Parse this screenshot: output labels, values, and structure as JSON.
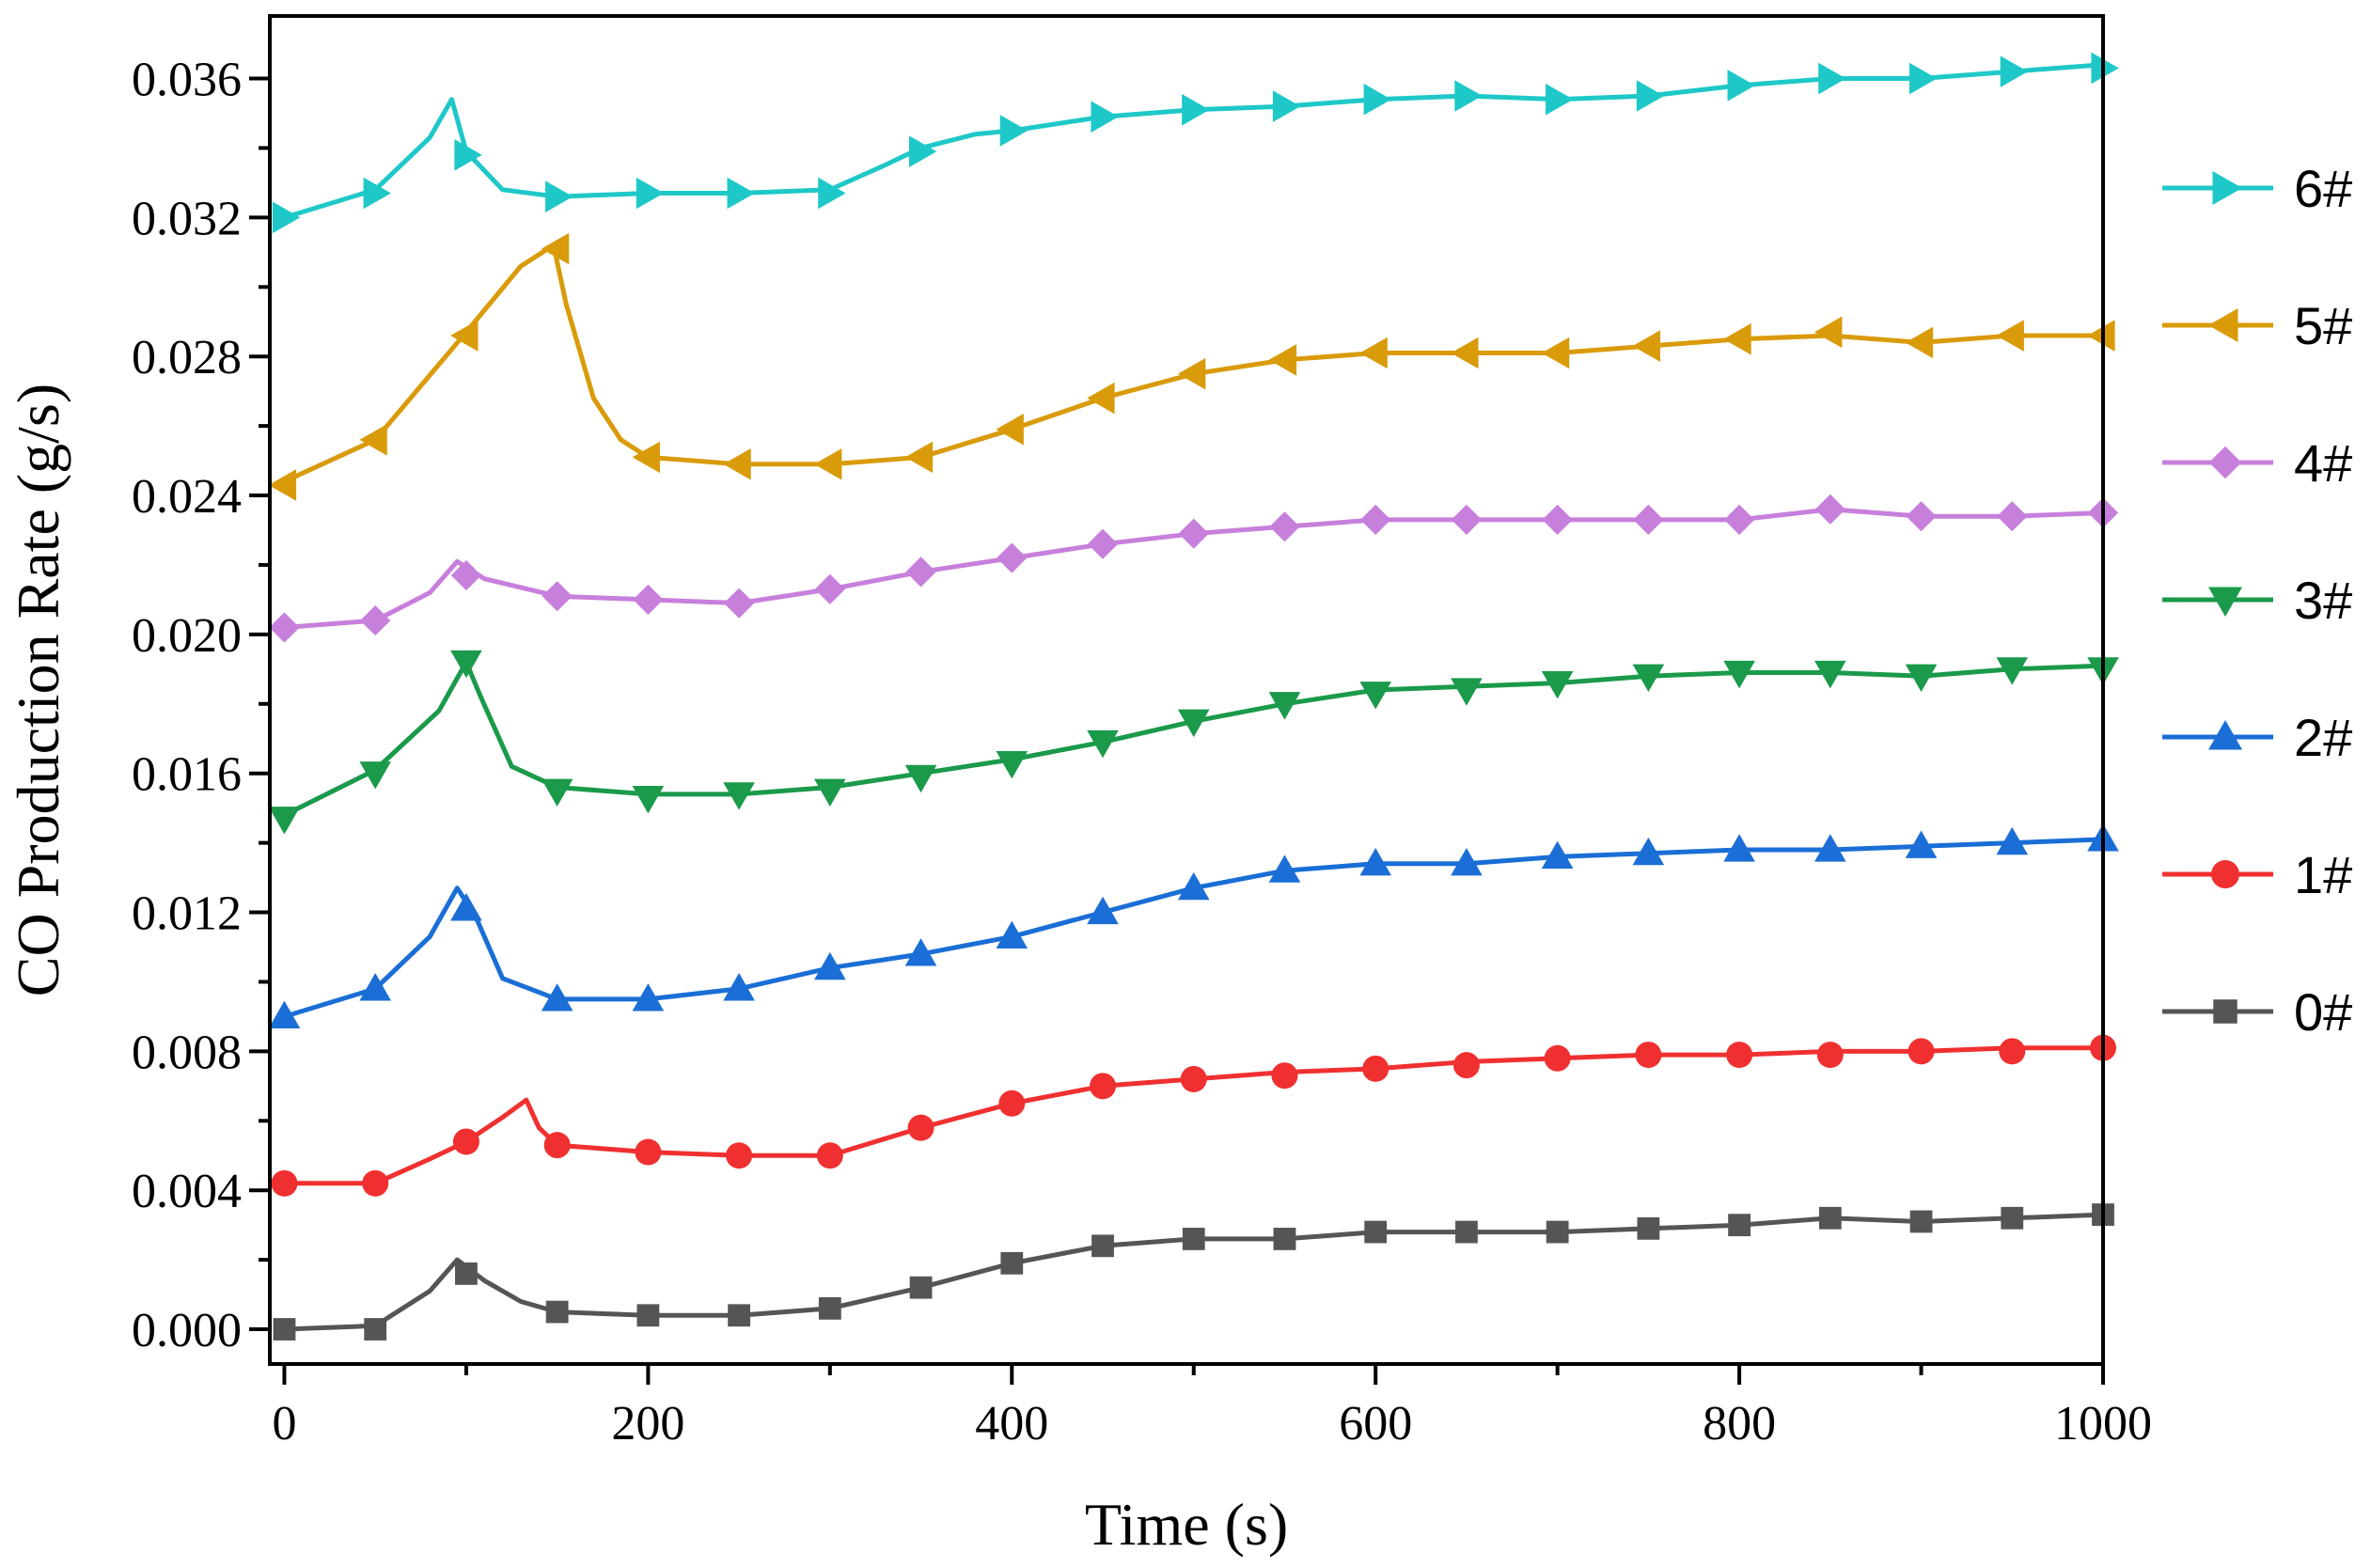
{
  "chart_data": {
    "type": "line",
    "title": "",
    "xlabel": "Time (s)",
    "ylabel": "CO Production Rate (g/s)",
    "xlim": [
      -8,
      1000
    ],
    "ylim": [
      -0.001,
      0.0378
    ],
    "x_ticks": [
      0,
      200,
      400,
      600,
      800,
      1000
    ],
    "x_tick_labels": [
      "0",
      "200",
      "400",
      "600",
      "800",
      "1000"
    ],
    "y_ticks": [
      0.0,
      0.004,
      0.008,
      0.012,
      0.016,
      0.02,
      0.024,
      0.028,
      0.032,
      0.036
    ],
    "y_tick_labels": [
      "0.000",
      "0.004",
      "0.008",
      "0.012",
      "0.016",
      "0.020",
      "0.024",
      "0.028",
      "0.032",
      "0.036"
    ],
    "grid": false,
    "legend_position": "right",
    "series": [
      {
        "name": "6#",
        "color": "#1fc8c8",
        "marker": "triangle-right",
        "line_x": [
          0,
          50,
          80,
          92,
          100,
          120,
          150,
          200,
          250,
          300,
          330,
          350,
          380,
          400,
          450,
          500,
          550,
          600,
          650,
          700,
          750,
          800,
          850,
          900,
          950,
          1000
        ],
        "line_y": [
          0.032,
          0.0328,
          0.0343,
          0.0354,
          0.0339,
          0.0328,
          0.0326,
          0.0327,
          0.0327,
          0.0328,
          0.0335,
          0.034,
          0.0344,
          0.0345,
          0.0349,
          0.0351,
          0.0352,
          0.0354,
          0.0355,
          0.0354,
          0.0355,
          0.0358,
          0.036,
          0.036,
          0.0362,
          0.0364
        ],
        "marker_x": [
          0,
          50,
          100,
          150,
          200,
          250,
          300,
          350,
          400,
          450,
          500,
          550,
          600,
          650,
          700,
          750,
          800,
          850,
          900,
          950,
          1000
        ],
        "marker_y": [
          0.032,
          0.0327,
          0.0338,
          0.0326,
          0.0327,
          0.0327,
          0.0327,
          0.0339,
          0.0345,
          0.0349,
          0.0351,
          0.0352,
          0.0354,
          0.0355,
          0.0354,
          0.0355,
          0.0358,
          0.036,
          0.036,
          0.0362,
          0.0363
        ]
      },
      {
        "name": "5#",
        "color": "#d99b0a",
        "marker": "triangle-left",
        "line_x": [
          0,
          50,
          100,
          130,
          148,
          155,
          170,
          185,
          200,
          250,
          300,
          350,
          400,
          450,
          500,
          550,
          600,
          650,
          700,
          750,
          800,
          850,
          900,
          950,
          1000
        ],
        "line_y": [
          0.0244,
          0.0256,
          0.0287,
          0.0306,
          0.0312,
          0.0295,
          0.0268,
          0.0256,
          0.0251,
          0.0249,
          0.0249,
          0.0251,
          0.0259,
          0.0268,
          0.0275,
          0.0279,
          0.0281,
          0.0281,
          0.0281,
          0.0283,
          0.0285,
          0.0286,
          0.0284,
          0.0286,
          0.0286
        ],
        "marker_x": [
          0,
          50,
          100,
          150,
          200,
          250,
          300,
          350,
          400,
          450,
          500,
          550,
          600,
          650,
          700,
          750,
          800,
          850,
          900,
          950,
          1000
        ],
        "marker_y": [
          0.0243,
          0.0256,
          0.0286,
          0.0311,
          0.0251,
          0.0249,
          0.0249,
          0.0251,
          0.0259,
          0.0268,
          0.0275,
          0.0279,
          0.0281,
          0.0281,
          0.0281,
          0.0283,
          0.0285,
          0.0287,
          0.0284,
          0.0286,
          0.0286
        ]
      },
      {
        "name": "4#",
        "color": "#c77fdc",
        "marker": "diamond",
        "line_x": [
          0,
          50,
          80,
          95,
          110,
          150,
          200,
          250,
          300,
          350,
          400,
          450,
          500,
          550,
          600,
          650,
          700,
          750,
          800,
          850,
          900,
          950,
          1000
        ],
        "line_y": [
          0.0202,
          0.0204,
          0.0212,
          0.0221,
          0.0216,
          0.0211,
          0.021,
          0.0209,
          0.0213,
          0.0218,
          0.0222,
          0.0226,
          0.0229,
          0.0231,
          0.0233,
          0.0233,
          0.0233,
          0.0233,
          0.0233,
          0.0236,
          0.0234,
          0.0234,
          0.0235
        ],
        "marker_x": [
          0,
          50,
          100,
          150,
          200,
          250,
          300,
          350,
          400,
          450,
          500,
          550,
          600,
          650,
          700,
          750,
          800,
          850,
          900,
          950,
          1000
        ],
        "marker_y": [
          0.0202,
          0.0204,
          0.0217,
          0.0211,
          0.021,
          0.0209,
          0.0213,
          0.0218,
          0.0222,
          0.0226,
          0.0229,
          0.0231,
          0.0233,
          0.0233,
          0.0233,
          0.0233,
          0.0233,
          0.0236,
          0.0234,
          0.0234,
          0.0235
        ]
      },
      {
        "name": "3#",
        "color": "#1a9a4a",
        "marker": "triangle-down",
        "line_x": [
          0,
          50,
          85,
          100,
          108,
          125,
          150,
          200,
          250,
          300,
          350,
          400,
          450,
          500,
          550,
          600,
          650,
          700,
          750,
          800,
          850,
          900,
          950,
          1000
        ],
        "line_y": [
          0.0148,
          0.0161,
          0.0178,
          0.0192,
          0.0182,
          0.0162,
          0.0156,
          0.0154,
          0.0154,
          0.0156,
          0.016,
          0.0164,
          0.0169,
          0.0175,
          0.018,
          0.0184,
          0.0185,
          0.0186,
          0.0188,
          0.0189,
          0.0189,
          0.0188,
          0.019,
          0.0191
        ],
        "marker_x": [
          0,
          50,
          100,
          150,
          200,
          250,
          300,
          350,
          400,
          450,
          500,
          550,
          600,
          650,
          700,
          750,
          800,
          850,
          900,
          950,
          1000
        ],
        "marker_y": [
          0.0147,
          0.016,
          0.0192,
          0.0155,
          0.0153,
          0.0154,
          0.0155,
          0.0159,
          0.0163,
          0.0169,
          0.0175,
          0.018,
          0.0183,
          0.0184,
          0.0186,
          0.0188,
          0.0189,
          0.0189,
          0.0188,
          0.019,
          0.019
        ]
      },
      {
        "name": "2#",
        "color": "#1a6ed6",
        "marker": "triangle-up",
        "line_x": [
          0,
          50,
          80,
          95,
          105,
          120,
          150,
          200,
          250,
          300,
          350,
          400,
          450,
          500,
          550,
          600,
          650,
          700,
          750,
          800,
          850,
          900,
          950,
          1000
        ],
        "line_y": [
          0.009,
          0.0098,
          0.0113,
          0.0127,
          0.0119,
          0.0101,
          0.0095,
          0.0095,
          0.0098,
          0.0104,
          0.0108,
          0.0113,
          0.012,
          0.0127,
          0.0132,
          0.0134,
          0.0134,
          0.0136,
          0.0137,
          0.0138,
          0.0138,
          0.0139,
          0.014,
          0.0141
        ],
        "marker_x": [
          0,
          50,
          100,
          150,
          200,
          250,
          300,
          350,
          400,
          450,
          500,
          550,
          600,
          650,
          700,
          750,
          800,
          850,
          900,
          950,
          1000
        ],
        "marker_y": [
          0.009,
          0.0098,
          0.0121,
          0.0095,
          0.0095,
          0.0098,
          0.0104,
          0.0108,
          0.0113,
          0.012,
          0.0127,
          0.0132,
          0.0134,
          0.0134,
          0.0136,
          0.0137,
          0.0138,
          0.0138,
          0.0139,
          0.014,
          0.0141
        ]
      },
      {
        "name": "1#",
        "color": "#f03030",
        "marker": "circle",
        "line_x": [
          0,
          50,
          80,
          100,
          120,
          133,
          140,
          150,
          200,
          250,
          300,
          350,
          400,
          450,
          500,
          550,
          600,
          650,
          700,
          750,
          800,
          850,
          900,
          950,
          1000
        ],
        "line_y": [
          0.0042,
          0.0042,
          0.0049,
          0.0054,
          0.0061,
          0.0066,
          0.0058,
          0.0053,
          0.0051,
          0.005,
          0.005,
          0.0058,
          0.0065,
          0.007,
          0.0072,
          0.0074,
          0.0075,
          0.0077,
          0.0078,
          0.0079,
          0.0079,
          0.008,
          0.008,
          0.0081,
          0.0081
        ],
        "marker_x": [
          0,
          50,
          100,
          150,
          200,
          250,
          300,
          350,
          400,
          450,
          500,
          550,
          600,
          650,
          700,
          750,
          800,
          850,
          900,
          950,
          1000
        ],
        "marker_y": [
          0.0042,
          0.0042,
          0.0054,
          0.0053,
          0.0051,
          0.005,
          0.005,
          0.0058,
          0.0065,
          0.007,
          0.0072,
          0.0073,
          0.0075,
          0.0076,
          0.0078,
          0.0079,
          0.0079,
          0.0079,
          0.008,
          0.008,
          0.0081
        ]
      },
      {
        "name": "0#",
        "color": "#555555",
        "marker": "square",
        "line_x": [
          0,
          50,
          80,
          95,
          110,
          130,
          150,
          200,
          250,
          300,
          350,
          400,
          450,
          500,
          550,
          600,
          650,
          700,
          750,
          800,
          850,
          900,
          950,
          1000
        ],
        "line_y": [
          0.0,
          0.0001,
          0.0011,
          0.002,
          0.0014,
          0.0008,
          0.0005,
          0.0004,
          0.0004,
          0.0006,
          0.0012,
          0.0019,
          0.0024,
          0.0026,
          0.0026,
          0.0028,
          0.0028,
          0.0028,
          0.0029,
          0.003,
          0.0032,
          0.0031,
          0.0032,
          0.0033
        ],
        "marker_x": [
          0,
          50,
          100,
          150,
          200,
          250,
          300,
          350,
          400,
          450,
          500,
          550,
          600,
          650,
          700,
          750,
          800,
          850,
          900,
          950,
          1000
        ],
        "marker_y": [
          0.0,
          0.0,
          0.0016,
          0.0005,
          0.0004,
          0.0004,
          0.0006,
          0.0012,
          0.0019,
          0.0024,
          0.0026,
          0.0026,
          0.0028,
          0.0028,
          0.0028,
          0.0029,
          0.003,
          0.0032,
          0.0031,
          0.0032,
          0.0033
        ]
      }
    ]
  }
}
